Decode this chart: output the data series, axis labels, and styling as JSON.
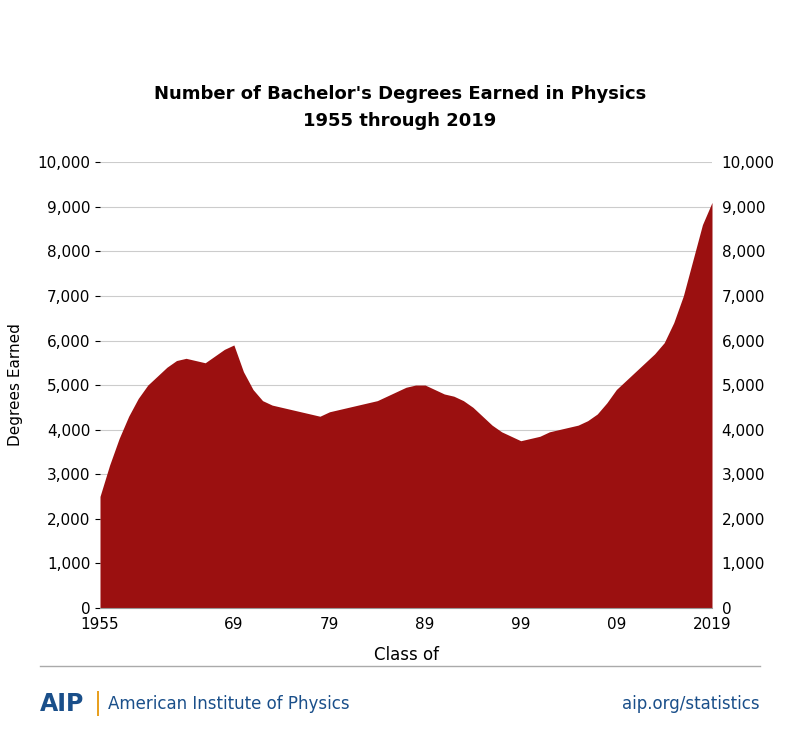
{
  "title_line1": "Number of Bachelor's Degrees Earned in Physics",
  "title_line2": "1955 through 2019",
  "xlabel": "Class of",
  "ylabel": "Degrees Earned",
  "fill_color": "#9B1010",
  "background_color": "#ffffff",
  "ylim": [
    0,
    10000
  ],
  "yticks": [
    0,
    1000,
    2000,
    3000,
    4000,
    5000,
    6000,
    7000,
    8000,
    9000,
    10000
  ],
  "xtick_labels": [
    "1955",
    "69",
    "79",
    "89",
    "99",
    "09",
    "2019"
  ],
  "xtick_positions": [
    1955,
    1969,
    1979,
    1989,
    1999,
    2009,
    2019
  ],
  "footer_text_right": "aip.org/statistics",
  "aip_color": "#1a4f8a",
  "pipe_color": "#e8a020",
  "years": [
    1955,
    1956,
    1957,
    1958,
    1959,
    1960,
    1961,
    1962,
    1963,
    1964,
    1965,
    1966,
    1967,
    1968,
    1969,
    1970,
    1971,
    1972,
    1973,
    1974,
    1975,
    1976,
    1977,
    1978,
    1979,
    1980,
    1981,
    1982,
    1983,
    1984,
    1985,
    1986,
    1987,
    1988,
    1989,
    1990,
    1991,
    1992,
    1993,
    1994,
    1995,
    1996,
    1997,
    1998,
    1999,
    2000,
    2001,
    2002,
    2003,
    2004,
    2005,
    2006,
    2007,
    2008,
    2009,
    2010,
    2011,
    2012,
    2013,
    2014,
    2015,
    2016,
    2017,
    2018,
    2019
  ],
  "values": [
    2500,
    3200,
    3800,
    4300,
    4700,
    5000,
    5200,
    5400,
    5550,
    5600,
    5550,
    5500,
    5650,
    5800,
    5900,
    5300,
    4900,
    4650,
    4550,
    4500,
    4450,
    4400,
    4350,
    4300,
    4400,
    4450,
    4500,
    4550,
    4600,
    4650,
    4750,
    4850,
    4950,
    5000,
    5000,
    4900,
    4800,
    4750,
    4650,
    4500,
    4300,
    4100,
    3950,
    3850,
    3750,
    3800,
    3850,
    3950,
    4000,
    4050,
    4100,
    4200,
    4350,
    4600,
    4900,
    5100,
    5300,
    5500,
    5700,
    5950,
    6400,
    7000,
    7800,
    8600,
    9100
  ]
}
